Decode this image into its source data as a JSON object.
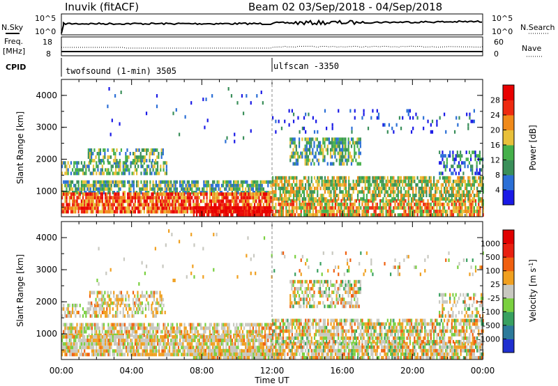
{
  "header": {
    "station": "Inuvik (fitACF)",
    "beam_title": "Beam 02 03/Sep/2018 - 04/Sep/2018"
  },
  "noise_panel": {
    "left_label": "N.Sky",
    "left_top": "10^5",
    "left_bottom": "10^0",
    "right_top": "10^5",
    "right_bottom": "10^0",
    "right_label": "N.Search"
  },
  "freq_panel": {
    "label_top": "Freq.",
    "label_bottom": "[MHz]",
    "left_top": "18",
    "left_bottom": "8",
    "right_top": "60",
    "right_bottom": "0",
    "right_label": "Nave"
  },
  "cpid_panel": {
    "label": "CPID",
    "mode1": "twofsound (1-min) 3505",
    "mode2": "ulfscan -3350"
  },
  "chart_data": [
    {
      "type": "heatmap",
      "name": "power",
      "ylabel": "Slant Range [km]",
      "yticks": [
        "1000",
        "2000",
        "3000",
        "4000"
      ],
      "ylim": [
        200,
        4500
      ],
      "colorbar_label": "Power [dB]",
      "colorbar_ticks": [
        "4",
        "8",
        "12",
        "16",
        "20",
        "24",
        "28"
      ],
      "colorbar_colors": [
        "#1a1ae6",
        "#2b6fd6",
        "#3a8f5a",
        "#45b04a",
        "#e8c03a",
        "#f08a1a",
        "#ee2a10",
        "#e80000"
      ]
    },
    {
      "type": "heatmap",
      "name": "velocity",
      "ylabel": "Slant Range [km]",
      "yticks": [
        "1000",
        "2000",
        "3000",
        "4000"
      ],
      "ylim": [
        200,
        4500
      ],
      "colorbar_label": "Velocity [m s",
      "colorbar_sup": "-1",
      "colorbar_label_end": "]",
      "colorbar_ticks": [
        "1000",
        "500",
        "100",
        "25",
        "-25",
        "-100",
        "-500",
        "-1000"
      ],
      "colorbar_colors": [
        "#1f2fd0",
        "#2c7a9a",
        "#38a060",
        "#7ad040",
        "#c8c8c0",
        "#f0a020",
        "#f06010",
        "#e82010",
        "#e00000"
      ]
    }
  ],
  "xaxis": {
    "ticks": [
      "00:00",
      "04:00",
      "08:00",
      "12:00",
      "16:00",
      "20:00",
      "00:00"
    ],
    "label": "Time UT"
  }
}
